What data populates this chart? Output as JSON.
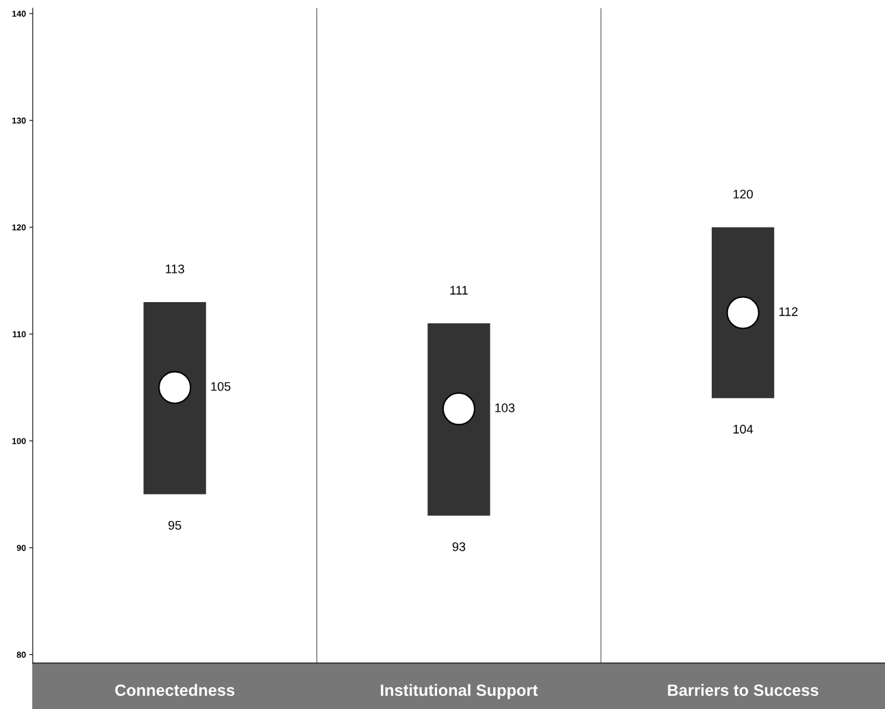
{
  "chart_data": {
    "type": "bar",
    "categories": [
      "Connectedness",
      "Institutional Support",
      "Barriers to Success"
    ],
    "series": [
      {
        "color": "#333333",
        "base": [
          95,
          93,
          104
        ],
        "values": [
          18,
          18,
          16
        ]
      },
      {
        "type": "scatter",
        "color": "#ffffff",
        "values": [
          105,
          103,
          112
        ],
        "value_labels": [
          "105",
          "103",
          "112"
        ]
      }
    ],
    "annotations": [
      {
        "text": "113",
        "x": "Connectedness",
        "y": 113
      },
      {
        "text": "95",
        "x": "Connectedness",
        "y": 95
      },
      {
        "text": "111",
        "x": "Institutional Support",
        "y": 111
      },
      {
        "text": "93",
        "x": "Institutional Support",
        "y": 93
      },
      {
        "text": "120",
        "x": "Barriers to Success",
        "y": 120
      },
      {
        "text": "104",
        "x": "Barriers to Success",
        "y": 104
      }
    ],
    "ylim": [
      79.2,
      140.5
    ],
    "yticks": [
      80,
      90,
      100,
      110,
      120,
      130,
      140
    ],
    "grid": false,
    "legend": false,
    "marker": "circle"
  }
}
